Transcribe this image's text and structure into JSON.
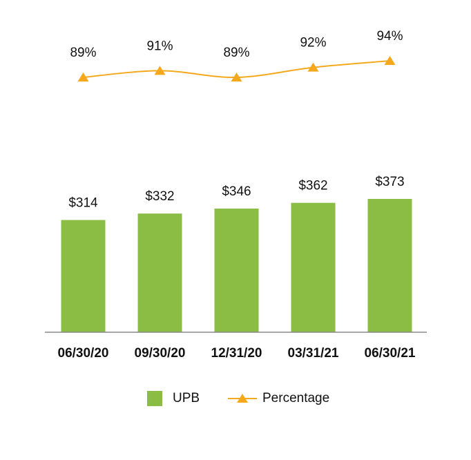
{
  "chart_data": {
    "type": "bar",
    "categories": [
      "06/30/20",
      "09/30/20",
      "12/31/20",
      "03/31/21",
      "06/30/21"
    ],
    "series": [
      {
        "name": "UPB",
        "type": "bar",
        "color": "#8bbd45",
        "values": [
          314,
          332,
          346,
          362,
          373
        ],
        "value_labels": [
          "$314",
          "$332",
          "$346",
          "$362",
          "$373"
        ]
      },
      {
        "name": "Percentage",
        "type": "line",
        "axis": "y2",
        "color": "#f5a81c",
        "values": [
          89,
          91,
          89,
          92,
          94
        ],
        "value_labels": [
          "89%",
          "91%",
          "89%",
          "92%",
          "94%"
        ]
      }
    ],
    "ylim": [
      0,
      400
    ],
    "y2lim": [
      80,
      100
    ],
    "grid": false,
    "legend": "bottom"
  }
}
